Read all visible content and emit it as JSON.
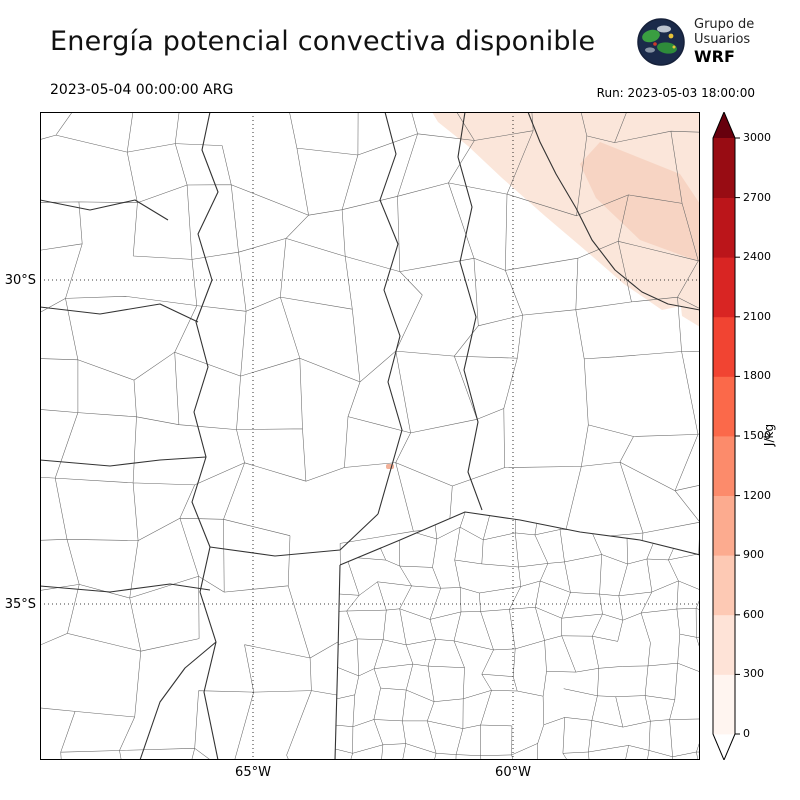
{
  "header": {
    "title": "Energía potencial convectiva disponible",
    "valid_time": "2023-05-04 00:00:00 ARG",
    "run_label": "Run: 2023-05-03 18:00:00",
    "logo": {
      "line1": "Grupo de",
      "line2": "Usuarios",
      "line3": "WRF"
    }
  },
  "map": {
    "lat_ticks": [
      {
        "label": "30°S"
      },
      {
        "label": "35°S"
      }
    ],
    "lon_ticks": [
      {
        "label": "65°W"
      },
      {
        "label": "60°W"
      }
    ]
  },
  "colorbar": {
    "unit": "J/kg",
    "tick_labels": [
      "0",
      "300",
      "600",
      "900",
      "1200",
      "1500",
      "1800",
      "2100",
      "2400",
      "2700",
      "3000"
    ],
    "max_value": 3000,
    "segment_colors_bottom_to_top": [
      "#fff5f0",
      "#fee3d7",
      "#fdc9b4",
      "#fcab8f",
      "#fc8b6b",
      "#fb694a",
      "#f14432",
      "#d92523",
      "#bb151a",
      "#980c13"
    ],
    "extend_above_color": "#67000d",
    "extend_below_color": "#ffffff"
  }
}
